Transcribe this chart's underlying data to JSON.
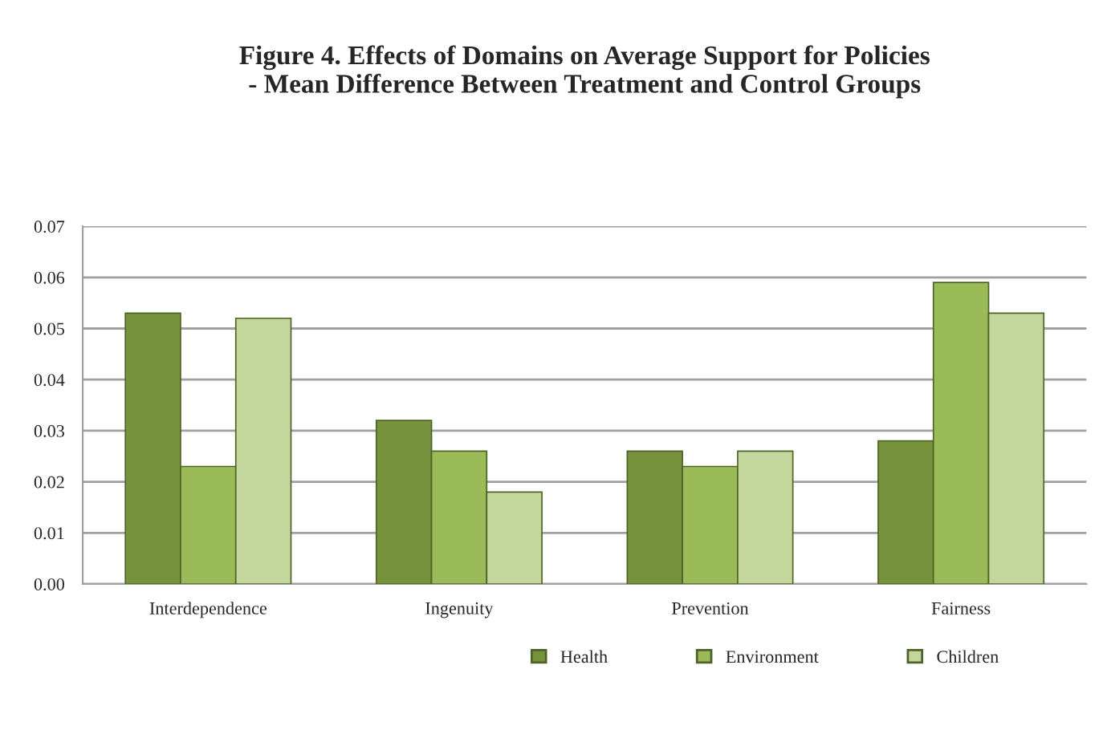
{
  "chart_data": {
    "type": "bar",
    "title": "Figure 4. Effects of Domains on Average Support for Policies\n- Mean Difference Between Treatment and Control Groups",
    "categories": [
      "Interdependence",
      "Ingenuity",
      "Prevention",
      "Fairness"
    ],
    "series": [
      {
        "name": "Health",
        "color": "#76923c",
        "values": [
          0.053,
          0.032,
          0.026,
          0.028
        ]
      },
      {
        "name": "Environment",
        "color": "#9bbb59",
        "values": [
          0.023,
          0.026,
          0.023,
          0.059
        ]
      },
      {
        "name": "Children",
        "color": "#c3d69b",
        "values": [
          0.052,
          0.018,
          0.026,
          0.053
        ]
      }
    ],
    "ylim": [
      0,
      0.07
    ],
    "yticks": [
      {
        "value": 0,
        "label": "0.00"
      },
      {
        "value": 0.01,
        "label": "0.01"
      },
      {
        "value": 0.02,
        "label": "0.02"
      },
      {
        "value": 0.03,
        "label": "0.03"
      },
      {
        "value": 0.04,
        "label": "0.04"
      },
      {
        "value": 0.05,
        "label": "0.05"
      },
      {
        "value": 0.06,
        "label": "0.06"
      },
      {
        "value": 0.07,
        "label": "0.07"
      }
    ],
    "grid": "y",
    "legend": "bottom"
  }
}
